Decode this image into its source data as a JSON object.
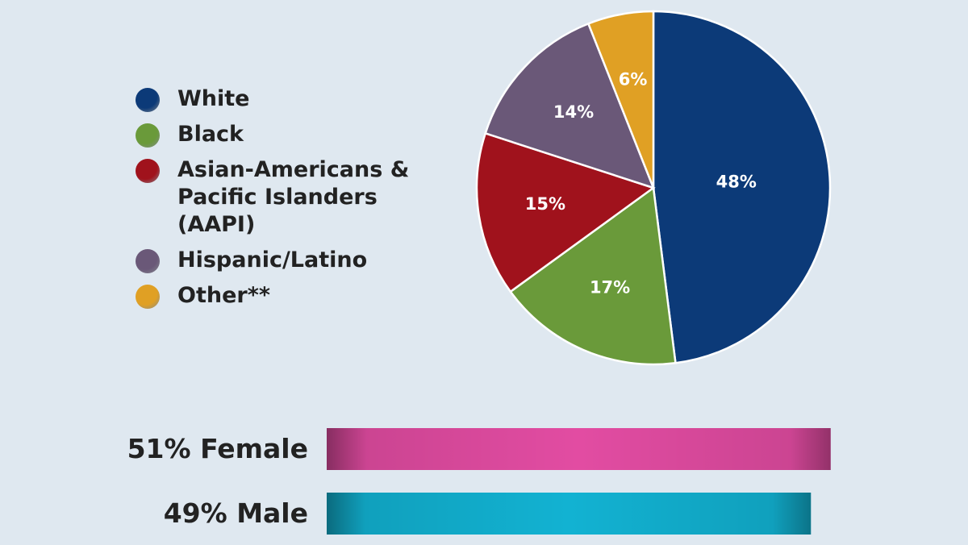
{
  "chart_data": [
    {
      "type": "pie",
      "categories": [
        "White",
        "Black",
        "Asian-Americans & Pacific Islanders (AAPI)",
        "Hispanic/Latino",
        "Other**"
      ],
      "values": [
        48,
        17,
        15,
        14,
        6
      ],
      "value_labels": [
        "48%",
        "17%",
        "15%",
        "14%",
        "6%"
      ],
      "colors": [
        "#0c3a78",
        "#6a9a3a",
        "#a0121c",
        "#6a5878",
        "#e0a024"
      ],
      "legend": "left"
    },
    {
      "type": "hbar",
      "categories": [
        "Female",
        "Male"
      ],
      "values": [
        51,
        49
      ],
      "value_labels": [
        "51%",
        "49%"
      ],
      "colors": [
        "#e24ca2",
        "#12b2d2"
      ]
    }
  ]
}
